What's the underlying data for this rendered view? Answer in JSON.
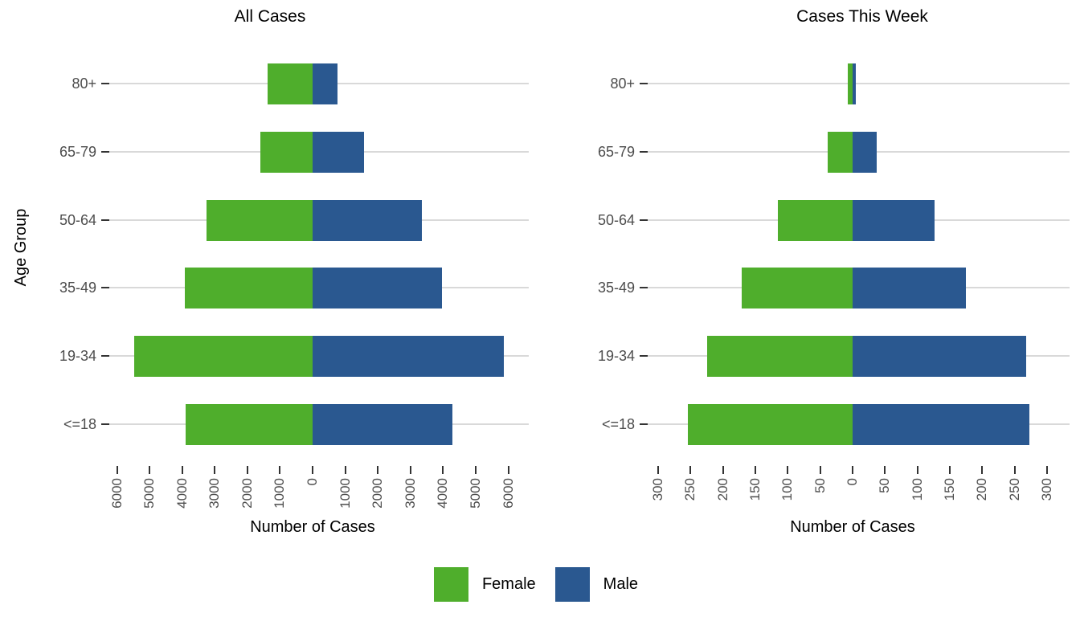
{
  "figure": {
    "y_axis_title": "Age Group",
    "legend": [
      {
        "label": "Female",
        "color": "#4fae2c"
      },
      {
        "label": "Male",
        "color": "#2a5890"
      }
    ]
  },
  "chart_data": [
    {
      "type": "bar",
      "variant": "population-pyramid",
      "title": "All Cases",
      "xlabel": "Number of Cases",
      "ylabel": "Age Group",
      "grid": "horizontal-only",
      "legend_position": "bottom",
      "categories": [
        "80+",
        "65-79",
        "50-64",
        "35-49",
        "19-34",
        "<=18"
      ],
      "series": [
        {
          "name": "Female",
          "direction": "left",
          "color": "#4fae2c",
          "values": [
            1370,
            1600,
            3260,
            3920,
            5460,
            3900
          ]
        },
        {
          "name": "Male",
          "direction": "right",
          "color": "#2a5890",
          "values": [
            760,
            1570,
            3340,
            3970,
            5870,
            4290
          ]
        }
      ],
      "xlim": [
        -6000,
        6000
      ],
      "tick_values": [
        -6000,
        -5000,
        -4000,
        -3000,
        -2000,
        -1000,
        0,
        1000,
        2000,
        3000,
        4000,
        5000,
        6000
      ],
      "tick_labels": [
        "6000",
        "5000",
        "4000",
        "3000",
        "2000",
        "1000",
        "0",
        "1000",
        "2000",
        "3000",
        "4000",
        "5000",
        "6000"
      ]
    },
    {
      "type": "bar",
      "variant": "population-pyramid",
      "title": "Cases This Week",
      "xlabel": "Number of Cases",
      "ylabel": "Age Group",
      "grid": "horizontal-only",
      "legend_position": "bottom",
      "categories": [
        "80+",
        "65-79",
        "50-64",
        "35-49",
        "19-34",
        "<=18"
      ],
      "series": [
        {
          "name": "Female",
          "direction": "left",
          "color": "#4fae2c",
          "values": [
            7,
            39,
            115,
            171,
            225,
            254
          ]
        },
        {
          "name": "Male",
          "direction": "right",
          "color": "#2a5890",
          "values": [
            5,
            37,
            127,
            175,
            268,
            273
          ]
        }
      ],
      "xlim": [
        -300,
        300
      ],
      "tick_values": [
        -300,
        -250,
        -200,
        -150,
        -100,
        -50,
        0,
        50,
        100,
        150,
        200,
        250,
        300
      ],
      "tick_labels": [
        "300",
        "250",
        "200",
        "150",
        "100",
        "50",
        "0",
        "50",
        "100",
        "150",
        "200",
        "250",
        "300"
      ]
    }
  ]
}
